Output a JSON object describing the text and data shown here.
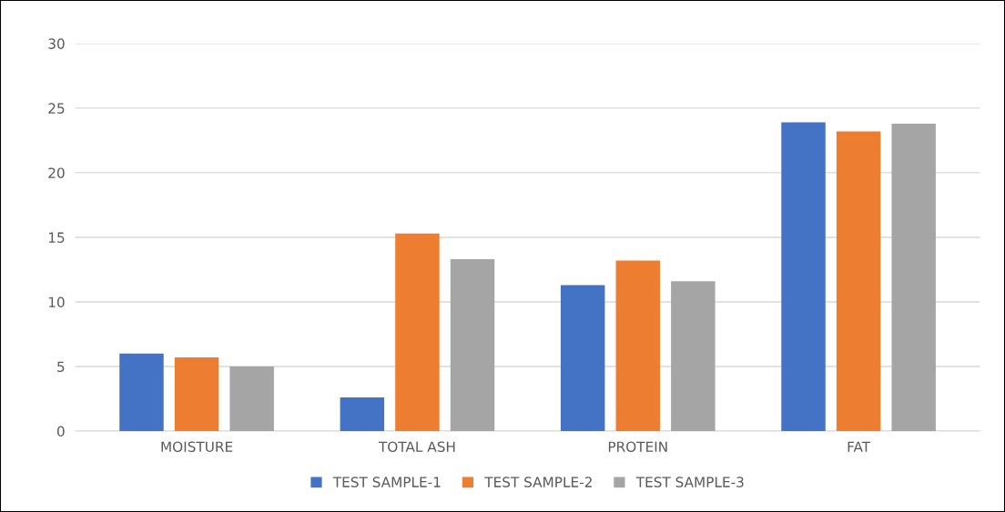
{
  "chart_data": {
    "type": "bar",
    "categories": [
      "MOISTURE",
      "TOTAL ASH",
      "PROTEIN",
      "FAT"
    ],
    "series": [
      {
        "name": "TEST SAMPLE-1",
        "color": "#4472c4",
        "values": [
          6.0,
          2.6,
          11.3,
          23.9
        ]
      },
      {
        "name": "TEST SAMPLE-2",
        "color": "#ed7d31",
        "values": [
          5.7,
          15.3,
          13.2,
          23.2
        ]
      },
      {
        "name": "TEST SAMPLE-3",
        "color": "#a5a5a5",
        "values": [
          5.0,
          13.3,
          11.6,
          23.8
        ]
      }
    ],
    "ylim": [
      0,
      30
    ],
    "yticks": [
      0,
      5,
      10,
      15,
      20,
      25,
      30
    ],
    "grid": "y",
    "legend": "bottom"
  }
}
